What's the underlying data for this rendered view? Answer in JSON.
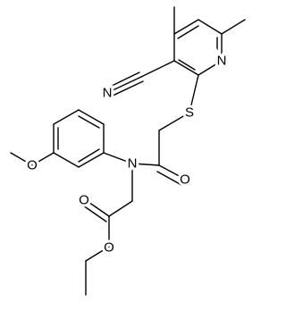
{
  "atoms": [
    {
      "label": "N"
    },
    {
      "label": "N"
    },
    {
      "label": "S"
    },
    {
      "label": "N"
    },
    {
      "label": "O"
    },
    {
      "label": "O"
    },
    {
      "label": "O"
    },
    {
      "label": "O"
    }
  ]
}
